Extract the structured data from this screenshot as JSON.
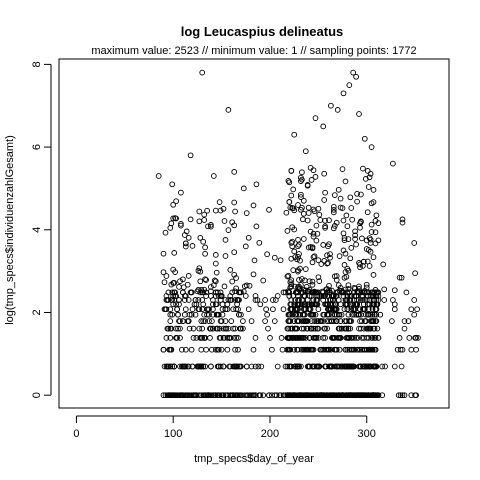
{
  "chart_data": {
    "type": "scatter",
    "title": "log Leucaspius delineatus",
    "subtitle": "maximum value: 2523  //  minimum value: 1  // sampling points: 1772",
    "xlabel": "tmp_specs$day_of_year",
    "ylabel": "log(tmp_specs$individuenzahlGesamt)",
    "xlim": [
      -18,
      385
    ],
    "ylim": [
      -0.31,
      8.13
    ],
    "xticks": [
      0,
      100,
      200,
      300
    ],
    "yticks": [
      0,
      2,
      4,
      6,
      8
    ],
    "xtick_labels": [
      "0",
      "100",
      "200",
      "300"
    ],
    "ytick_labels": [
      "0",
      "2",
      "4",
      "6",
      "8"
    ],
    "grid": false,
    "legend": "none",
    "marker": "open-circle",
    "colors": {
      "point": "#000000",
      "axis": "#000000",
      "background": "#ffffff"
    },
    "outliers": [
      [
        85,
        5.3
      ],
      [
        99,
        5.1
      ],
      [
        108,
        4.9
      ],
      [
        118,
        5.8
      ],
      [
        130,
        7.8
      ],
      [
        142,
        5.3
      ],
      [
        157,
        6.9
      ],
      [
        163,
        5.4
      ],
      [
        173,
        5.0
      ],
      [
        186,
        5.1
      ],
      [
        225,
        6.3
      ],
      [
        237,
        5.9
      ],
      [
        247,
        6.7
      ],
      [
        255,
        6.5
      ],
      [
        263,
        7.0
      ],
      [
        270,
        6.9
      ],
      [
        276,
        7.3
      ],
      [
        282,
        7.5
      ],
      [
        286,
        7.8
      ],
      [
        289,
        7.7
      ],
      [
        292,
        6.8
      ],
      [
        298,
        6.2
      ],
      [
        305,
        6.0
      ],
      [
        327,
        5.6
      ]
    ],
    "density": [
      {
        "range": [
          90,
          170
        ],
        "weight": 3.0
      },
      {
        "range": [
          170,
          218
        ],
        "weight": 0.8
      },
      {
        "range": [
          218,
          312
        ],
        "weight": 6.5
      },
      {
        "range": [
          312,
          355
        ],
        "weight": 0.6
      }
    ],
    "value_profile": {
      "zero_share": 0.25,
      "discrete_levels": [
        0.693,
        1.099,
        1.386,
        1.609,
        1.792,
        1.946,
        2.079,
        2.197,
        2.303,
        2.398,
        2.485
      ],
      "continuous_range": [
        2.5,
        5.5
      ]
    },
    "sampling_points": 1772,
    "max_value": 2523,
    "min_value": 1
  }
}
